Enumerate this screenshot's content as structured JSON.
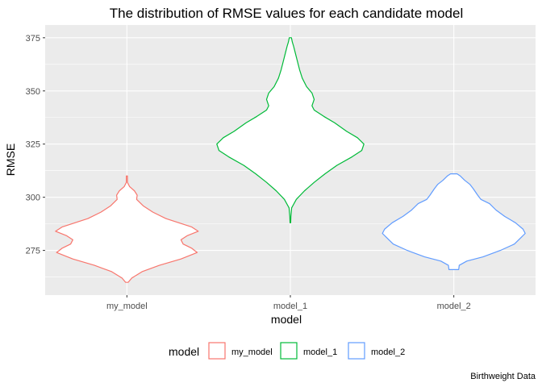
{
  "chart_data": {
    "type": "violin",
    "title": "The distribution of RMSE values for each candidate model",
    "xlabel": "model",
    "ylabel": "RMSE",
    "caption": "Birthweight Data",
    "categories": [
      "my_model",
      "model_1",
      "model_2"
    ],
    "ylim": [
      254,
      381
    ],
    "yticks": [
      275,
      300,
      325,
      350,
      375
    ],
    "grid": true,
    "legend": {
      "title": "model",
      "position": "bottom",
      "entries": [
        "my_model",
        "model_1",
        "model_2"
      ]
    },
    "colors": {
      "my_model": "#F8766D",
      "model_1": "#00BA38",
      "model_2": "#619CFF",
      "panel_background": "#EBEBEB",
      "grid": "#FFFFFF"
    },
    "series": [
      {
        "category": "my_model",
        "min": 260,
        "max": 310,
        "profile": [
          [
            260,
            0.12
          ],
          [
            262,
            0.45
          ],
          [
            265,
            1.4
          ],
          [
            268,
            3.0
          ],
          [
            271,
            5.0
          ],
          [
            274,
            6.5
          ],
          [
            276,
            6.0
          ],
          [
            278,
            5.2
          ],
          [
            280,
            5.0
          ],
          [
            282,
            5.6
          ],
          [
            284,
            6.6
          ],
          [
            286,
            6.0
          ],
          [
            288,
            4.8
          ],
          [
            290,
            3.6
          ],
          [
            293,
            2.4
          ],
          [
            296,
            1.5
          ],
          [
            299,
            0.9
          ],
          [
            301,
            0.95
          ],
          [
            303,
            0.7
          ],
          [
            305,
            0.25
          ],
          [
            307,
            0.05
          ],
          [
            310,
            0.05
          ]
        ]
      },
      {
        "category": "model_1",
        "min": 288,
        "max": 375,
        "profile": [
          [
            288,
            0.03
          ],
          [
            291,
            0.05
          ],
          [
            295,
            0.12
          ],
          [
            299,
            0.55
          ],
          [
            303,
            1.3
          ],
          [
            307,
            2.2
          ],
          [
            311,
            3.2
          ],
          [
            315,
            4.3
          ],
          [
            319,
            5.7
          ],
          [
            322,
            6.6
          ],
          [
            325,
            6.8
          ],
          [
            328,
            6.2
          ],
          [
            331,
            5.2
          ],
          [
            335,
            4.1
          ],
          [
            338,
            3.1
          ],
          [
            341,
            2.2
          ],
          [
            343,
            2.0
          ],
          [
            346,
            2.2
          ],
          [
            349,
            2.0
          ],
          [
            352,
            1.5
          ],
          [
            356,
            1.1
          ],
          [
            360,
            0.85
          ],
          [
            364,
            0.65
          ],
          [
            368,
            0.45
          ],
          [
            371,
            0.3
          ],
          [
            373,
            0.18
          ],
          [
            375,
            0.1
          ]
        ]
      },
      {
        "category": "model_2",
        "min": 266,
        "max": 311,
        "profile": [
          [
            266,
            0.45
          ],
          [
            268,
            0.5
          ],
          [
            270,
            1.2
          ],
          [
            272,
            2.7
          ],
          [
            275,
            4.3
          ],
          [
            278,
            5.6
          ],
          [
            281,
            6.2
          ],
          [
            283,
            6.6
          ],
          [
            285,
            6.4
          ],
          [
            288,
            5.7
          ],
          [
            291,
            4.7
          ],
          [
            294,
            3.9
          ],
          [
            297,
            3.3
          ],
          [
            299,
            2.5
          ],
          [
            301,
            2.2
          ],
          [
            304,
            1.8
          ],
          [
            306,
            1.5
          ],
          [
            308,
            1.0
          ],
          [
            310,
            0.6
          ],
          [
            311,
            0.3
          ]
        ]
      }
    ]
  }
}
